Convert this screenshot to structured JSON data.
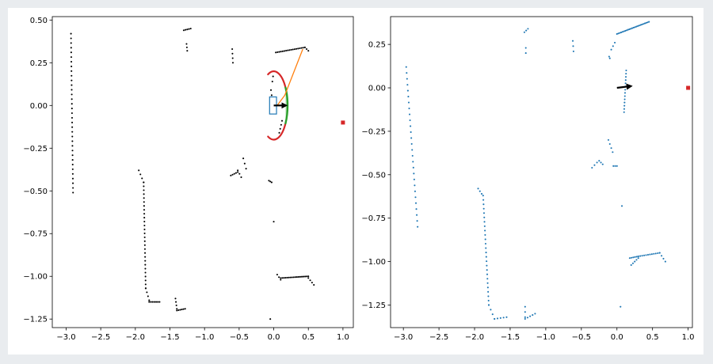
{
  "chart_data": [
    {
      "type": "scatter",
      "title": "",
      "xlabel": "",
      "ylabel": "",
      "xlim": [
        -3.2,
        1.15
      ],
      "ylim": [
        -1.3,
        0.52
      ],
      "xticks": [
        "-3.0",
        "-2.5",
        "-2.0",
        "-1.5",
        "-1.0",
        "-0.5",
        "0.0",
        "0.5",
        "1.0"
      ],
      "yticks": [
        "0.50",
        "0.25",
        "0.00",
        "-0.25",
        "-0.50",
        "-0.75",
        "-1.00",
        "-1.25"
      ],
      "grid": false,
      "colors": {
        "points": "#000000",
        "goal": "#d62728",
        "robot_box": "#1f77b4",
        "heading": "#000000",
        "path": "#ff7f0e",
        "arc_red": "#d62728",
        "arc_green": "#2ca02c"
      },
      "segments": [
        {
          "from": [
            -2.93,
            0.42
          ],
          "to": [
            -2.9,
            -0.51
          ],
          "n": 35
        },
        {
          "from": [
            -1.3,
            0.44
          ],
          "to": [
            -1.2,
            0.45
          ],
          "n": 5
        },
        {
          "from": [
            -1.26,
            0.36
          ],
          "to": [
            -1.25,
            0.32
          ],
          "n": 3
        },
        {
          "from": [
            -0.6,
            0.33
          ],
          "to": [
            -0.59,
            0.25
          ],
          "n": 4
        },
        {
          "from": [
            0.03,
            0.31
          ],
          "to": [
            0.45,
            0.34
          ],
          "n": 18
        },
        {
          "from": [
            0.45,
            0.34
          ],
          "to": [
            0.5,
            0.32
          ],
          "n": 3
        },
        {
          "from": [
            0.0,
            0.2
          ],
          "to": [
            -0.02,
            0.14
          ],
          "n": 3
        },
        {
          "from": [
            -0.04,
            0.09
          ],
          "to": [
            -0.03,
            0.06
          ],
          "n": 2
        },
        {
          "from": [
            0.12,
            -0.09
          ],
          "to": [
            0.08,
            -0.16
          ],
          "n": 4
        },
        {
          "from": [
            -1.95,
            -0.38
          ],
          "to": [
            -1.88,
            -0.45
          ],
          "n": 4
        },
        {
          "from": [
            -1.88,
            -0.45
          ],
          "to": [
            -1.85,
            -1.07
          ],
          "n": 28
        },
        {
          "from": [
            -1.85,
            -1.07
          ],
          "to": [
            -1.8,
            -1.14
          ],
          "n": 4
        },
        {
          "from": [
            -1.8,
            -1.15
          ],
          "to": [
            -1.65,
            -1.15
          ],
          "n": 7
        },
        {
          "from": [
            -1.42,
            -1.13
          ],
          "to": [
            -1.4,
            -1.19
          ],
          "n": 4
        },
        {
          "from": [
            -1.4,
            -1.2
          ],
          "to": [
            -1.28,
            -1.19
          ],
          "n": 6
        },
        {
          "from": [
            -0.62,
            -0.41
          ],
          "to": [
            -0.52,
            -0.39
          ],
          "n": 5
        },
        {
          "from": [
            -0.52,
            -0.38
          ],
          "to": [
            -0.47,
            -0.42
          ],
          "n": 3
        },
        {
          "from": [
            -0.44,
            -0.31
          ],
          "to": [
            -0.4,
            -0.37
          ],
          "n": 3
        },
        {
          "from": [
            -0.07,
            -0.44
          ],
          "to": [
            -0.03,
            -0.45
          ],
          "n": 3
        },
        {
          "from": [
            0.05,
            -0.99
          ],
          "to": [
            0.1,
            -1.02
          ],
          "n": 3
        },
        {
          "from": [
            0.1,
            -1.01
          ],
          "to": [
            0.5,
            -1.0
          ],
          "n": 18
        },
        {
          "from": [
            0.5,
            -1.01
          ],
          "to": [
            0.58,
            -1.05
          ],
          "n": 4
        }
      ],
      "points": [
        [
          0.0,
          -0.68
        ],
        [
          -0.05,
          -1.25
        ]
      ],
      "goal": [
        1.0,
        -0.1
      ],
      "robot_box": {
        "x0": -0.06,
        "y0": -0.05,
        "x1": 0.04,
        "y1": 0.05
      },
      "heading": {
        "from": [
          0.0,
          0.0
        ],
        "to": [
          0.18,
          0.0
        ]
      },
      "path": [
        [
          0.05,
          0.0
        ],
        [
          0.16,
          0.06
        ],
        [
          0.42,
          0.33
        ]
      ],
      "arc_center": [
        0.0,
        0.0
      ],
      "arc_radius": 0.2
    },
    {
      "type": "scatter",
      "title": "",
      "xlabel": "",
      "ylabel": "",
      "xlim": [
        -3.18,
        1.06
      ],
      "ylim": [
        -1.38,
        0.41
      ],
      "xticks": [
        "-3.0",
        "-2.5",
        "-2.0",
        "-1.5",
        "-1.0",
        "-0.5",
        "0.0",
        "0.5",
        "1.0"
      ],
      "yticks": [
        "0.25",
        "0.00",
        "-0.25",
        "-0.50",
        "-0.75",
        "-1.00",
        "-1.25"
      ],
      "grid": false,
      "colors": {
        "points": "#1f77b4",
        "goal": "#d62728",
        "heading": "#000000"
      },
      "segments": [
        {
          "from": [
            -2.96,
            0.12
          ],
          "to": [
            -2.8,
            -0.8
          ],
          "n": 28
        },
        {
          "from": [
            -1.3,
            0.32
          ],
          "to": [
            -1.25,
            0.34
          ],
          "n": 3
        },
        {
          "from": [
            -1.28,
            0.23
          ],
          "to": [
            -1.28,
            0.2
          ],
          "n": 2
        },
        {
          "from": [
            -0.62,
            0.27
          ],
          "to": [
            -0.61,
            0.21
          ],
          "n": 3
        },
        {
          "from": [
            0.0,
            0.31
          ],
          "to": [
            0.45,
            0.38
          ],
          "n": 24
        },
        {
          "from": [
            -0.08,
            0.22
          ],
          "to": [
            -0.03,
            0.26
          ],
          "n": 3
        },
        {
          "from": [
            -0.11,
            0.18
          ],
          "to": [
            -0.1,
            0.17
          ],
          "n": 2
        },
        {
          "from": [
            0.13,
            0.1
          ],
          "to": [
            0.1,
            -0.14
          ],
          "n": 14
        },
        {
          "from": [
            -1.95,
            -0.58
          ],
          "to": [
            -1.9,
            -0.61
          ],
          "n": 3
        },
        {
          "from": [
            -1.88,
            -0.62
          ],
          "to": [
            -1.8,
            -1.25
          ],
          "n": 26
        },
        {
          "from": [
            -1.8,
            -1.25
          ],
          "to": [
            -1.72,
            -1.33
          ],
          "n": 4
        },
        {
          "from": [
            -1.72,
            -1.33
          ],
          "to": [
            -1.55,
            -1.32
          ],
          "n": 5
        },
        {
          "from": [
            -1.29,
            -1.26
          ],
          "to": [
            -1.29,
            -1.32
          ],
          "n": 3
        },
        {
          "from": [
            -1.29,
            -1.33
          ],
          "to": [
            -1.15,
            -1.3
          ],
          "n": 5
        },
        {
          "from": [
            -0.12,
            -0.3
          ],
          "to": [
            -0.06,
            -0.37
          ],
          "n": 4
        },
        {
          "from": [
            -0.25,
            -0.42
          ],
          "to": [
            -0.2,
            -0.44
          ],
          "n": 3
        },
        {
          "from": [
            -0.35,
            -0.46
          ],
          "to": [
            -0.28,
            -0.43
          ],
          "n": 3
        },
        {
          "from": [
            -0.05,
            -0.45
          ],
          "to": [
            0.0,
            -0.45
          ],
          "n": 3
        },
        {
          "from": [
            0.18,
            -0.98
          ],
          "to": [
            0.3,
            -0.97
          ],
          "n": 6
        },
        {
          "from": [
            0.3,
            -0.97
          ],
          "to": [
            0.6,
            -0.95
          ],
          "n": 12
        },
        {
          "from": [
            0.6,
            -0.95
          ],
          "to": [
            0.68,
            -1.0
          ],
          "n": 4
        },
        {
          "from": [
            0.2,
            -1.02
          ],
          "to": [
            0.3,
            -0.98
          ],
          "n": 5
        }
      ],
      "points": [
        [
          0.07,
          -0.68
        ],
        [
          0.05,
          -1.26
        ]
      ],
      "goal": [
        1.0,
        0.0
      ],
      "heading": {
        "from": [
          0.0,
          0.0
        ],
        "to": [
          0.2,
          0.01
        ]
      }
    }
  ]
}
